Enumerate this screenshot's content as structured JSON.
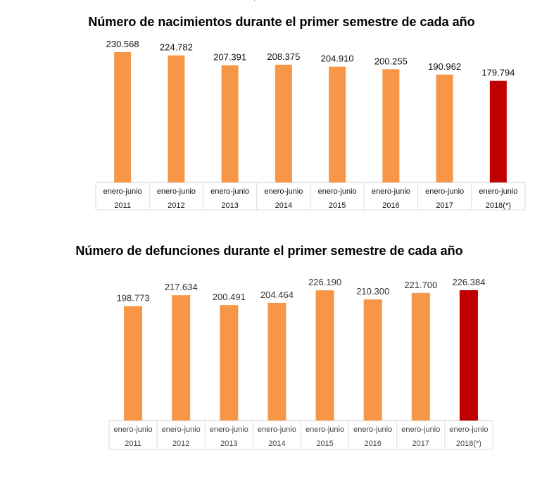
{
  "chart_data": [
    {
      "type": "bar",
      "title": "Número de nacimientos durante el primer semestre de cada año",
      "categories": [
        [
          "enero-junio",
          "2011"
        ],
        [
          "enero-junio",
          "2012"
        ],
        [
          "enero-junio",
          "2013"
        ],
        [
          "enero-junio",
          "2014"
        ],
        [
          "enero-junio",
          "2015"
        ],
        [
          "enero-junio",
          "2016"
        ],
        [
          "enero-junio",
          "2017"
        ],
        [
          "enero-junio",
          "2018(*)"
        ]
      ],
      "values": [
        230568,
        224782,
        207391,
        208375,
        204910,
        200255,
        190962,
        179794
      ],
      "value_labels": [
        "230.568",
        "224.782",
        "207.391",
        "208.375",
        "204.910",
        "200.255",
        "190.962",
        "179.794"
      ],
      "colors": [
        "#f79646",
        "#f79646",
        "#f79646",
        "#f79646",
        "#f79646",
        "#f79646",
        "#f79646",
        "#c00000"
      ],
      "xlabel": "",
      "ylabel": "",
      "ylim": [
        0,
        230568
      ],
      "grid": false
    },
    {
      "type": "bar",
      "title": "Número de defunciones durante el primer semestre de cada año",
      "categories": [
        [
          "enero-junio",
          "2011"
        ],
        [
          "enero-junio",
          "2012"
        ],
        [
          "enero-junio",
          "2013"
        ],
        [
          "enero-junio",
          "2014"
        ],
        [
          "enero-junio",
          "2015"
        ],
        [
          "enero-junio",
          "2016"
        ],
        [
          "enero-junio",
          "2017"
        ],
        [
          "enero-junio",
          "2018(*)"
        ]
      ],
      "values": [
        198773,
        217634,
        200491,
        204464,
        226190,
        210300,
        221700,
        226384
      ],
      "value_labels": [
        "198.773",
        "217.634",
        "200.491",
        "204.464",
        "226.190",
        "210.300",
        "221.700",
        "226.384"
      ],
      "colors": [
        "#f79646",
        "#f79646",
        "#f79646",
        "#f79646",
        "#f79646",
        "#f79646",
        "#f79646",
        "#c00000"
      ],
      "xlabel": "",
      "ylabel": "",
      "ylim": [
        0,
        226384
      ],
      "grid": false
    }
  ]
}
